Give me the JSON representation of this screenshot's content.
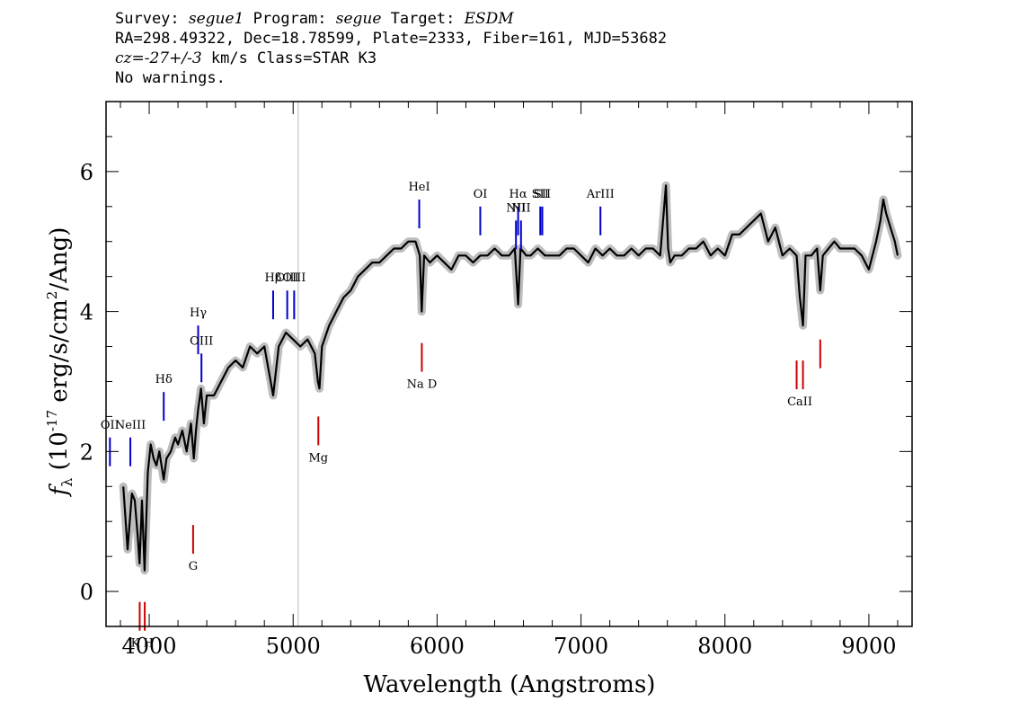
{
  "header": {
    "line1": {
      "p1": "Survey: ",
      "survey": "segue1",
      "p2": " Program: ",
      "program": "segue",
      "p3": " Target: ",
      "target": "ESDM"
    },
    "line2": "RA=298.49322, Dec=18.78599, Plate=2333, Fiber=161, MJD=53682",
    "line3": {
      "cz": "cz=-27+/-3",
      "rest": " km/s Class=STAR K3"
    },
    "line4": "No warnings."
  },
  "chart_data": {
    "type": "line",
    "title": "",
    "xlabel": "Wavelength (Angstroms)",
    "ylabel": "f_λ (10^-17 erg/s/cm^2/Ang)",
    "xlim": [
      3700,
      9300
    ],
    "ylim": [
      -0.5,
      7.0
    ],
    "x_ticks": [
      "4000",
      "5000",
      "6000",
      "7000",
      "8000",
      "9000"
    ],
    "y_ticks": [
      "0",
      "2",
      "4",
      "6"
    ],
    "vertical_marker_x": 5035,
    "series": [
      {
        "color": "#000000",
        "error_color": "#bdbdbd",
        "x": [
          3820,
          3850,
          3880,
          3900,
          3920,
          3933,
          3950,
          3968,
          3990,
          4010,
          4030,
          4050,
          4070,
          4101,
          4120,
          4150,
          4180,
          4200,
          4230,
          4260,
          4290,
          4310,
          4325,
          4340,
          4360,
          4380,
          4400,
          4450,
          4500,
          4550,
          4600,
          4650,
          4700,
          4750,
          4800,
          4861,
          4900,
          4950,
          5000,
          5050,
          5100,
          5150,
          5172,
          5183,
          5200,
          5250,
          5300,
          5350,
          5400,
          5450,
          5500,
          5550,
          5600,
          5650,
          5700,
          5750,
          5800,
          5850,
          5880,
          5893,
          5910,
          5950,
          6000,
          6050,
          6100,
          6150,
          6200,
          6250,
          6300,
          6350,
          6400,
          6450,
          6500,
          6540,
          6563,
          6580,
          6620,
          6650,
          6700,
          6750,
          6800,
          6850,
          6900,
          6950,
          7000,
          7050,
          7100,
          7150,
          7200,
          7250,
          7300,
          7350,
          7400,
          7450,
          7500,
          7550,
          7590,
          7605,
          7620,
          7650,
          7700,
          7750,
          7800,
          7850,
          7900,
          7950,
          8000,
          8050,
          8100,
          8150,
          8200,
          8250,
          8300,
          8350,
          8400,
          8450,
          8498,
          8520,
          8542,
          8560,
          8600,
          8640,
          8662,
          8680,
          8720,
          8760,
          8800,
          8850,
          8900,
          8950,
          9000,
          9050,
          9080,
          9100,
          9120,
          9150,
          9180,
          9200
        ],
        "values": [
          1.5,
          0.6,
          1.4,
          1.3,
          0.8,
          0.4,
          1.3,
          0.3,
          1.7,
          2.1,
          1.9,
          1.8,
          2.0,
          1.6,
          1.9,
          2.0,
          2.2,
          2.1,
          2.3,
          2.0,
          2.4,
          1.9,
          2.3,
          2.6,
          2.9,
          2.4,
          2.8,
          2.8,
          3.0,
          3.2,
          3.3,
          3.2,
          3.5,
          3.4,
          3.5,
          2.8,
          3.5,
          3.7,
          3.6,
          3.5,
          3.6,
          3.4,
          3.0,
          2.9,
          3.5,
          3.8,
          4.0,
          4.2,
          4.3,
          4.5,
          4.6,
          4.7,
          4.7,
          4.8,
          4.9,
          4.9,
          5.0,
          5.0,
          4.8,
          4.0,
          4.8,
          4.7,
          4.8,
          4.7,
          4.6,
          4.8,
          4.8,
          4.7,
          4.8,
          4.8,
          4.9,
          4.8,
          4.8,
          4.9,
          4.1,
          4.9,
          4.8,
          4.8,
          4.9,
          4.8,
          4.8,
          4.8,
          4.9,
          4.9,
          4.8,
          4.7,
          4.9,
          4.8,
          4.9,
          4.8,
          4.8,
          4.9,
          4.8,
          4.9,
          4.9,
          4.8,
          5.8,
          4.9,
          4.7,
          4.8,
          4.8,
          4.9,
          4.9,
          5.0,
          4.8,
          4.9,
          4.8,
          5.1,
          5.1,
          5.2,
          5.3,
          5.4,
          5.0,
          5.2,
          4.8,
          4.9,
          4.8,
          4.2,
          3.8,
          4.8,
          4.8,
          4.9,
          4.3,
          4.8,
          4.9,
          5.0,
          4.9,
          4.9,
          4.9,
          4.8,
          4.6,
          5.0,
          5.3,
          5.6,
          5.4,
          5.2,
          5.0,
          4.8
        ]
      }
    ],
    "emission_lines": [
      {
        "label": "OII",
        "x": 3727,
        "level": 2.2
      },
      {
        "label": "NeIII",
        "x": 3869,
        "level": 2.2
      },
      {
        "label": "Hδ",
        "x": 4101,
        "level": 2.85
      },
      {
        "label": "Hγ",
        "x": 4340,
        "level": 3.8
      },
      {
        "label": "OIII",
        "x": 4363,
        "level": 3.4
      },
      {
        "label": "Hβ",
        "x": 4861,
        "level": 4.3
      },
      {
        "label": "OIII",
        "x": 4959,
        "level": 4.3
      },
      {
        "label": "OIII",
        "x": 5007,
        "level": 4.3
      },
      {
        "label": "HeI",
        "x": 5876,
        "level": 5.6
      },
      {
        "label": "OI",
        "x": 6300,
        "level": 5.5
      },
      {
        "label": "NII",
        "x": 6548,
        "level": 5.3
      },
      {
        "label": "Hα",
        "x": 6563,
        "level": 5.5
      },
      {
        "label": "NII",
        "x": 6583,
        "level": 5.3
      },
      {
        "label": "SII",
        "x": 6717,
        "level": 5.5
      },
      {
        "label": "SII",
        "x": 6731,
        "level": 5.5
      },
      {
        "label": "ArIII",
        "x": 7135,
        "level": 5.5
      }
    ],
    "absorption_lines": [
      {
        "label": "K",
        "x": 3934,
        "level": -0.15
      },
      {
        "label": "H",
        "x": 3969,
        "level": -0.15
      },
      {
        "label": "G",
        "x": 4305,
        "level": 0.95
      },
      {
        "label": "Mg",
        "x": 5175,
        "level": 2.5
      },
      {
        "label": "Na D",
        "x": 5894,
        "level": 3.55
      },
      {
        "label": "CaII",
        "x": 8498,
        "level": 3.3
      },
      {
        "label": "CaII",
        "x": 8542,
        "level": 3.3
      },
      {
        "label": "CaII",
        "x": 8662,
        "level": 3.6
      }
    ],
    "line_label_texts": {
      "kh": "K H",
      "nad": "Na D",
      "caii": "CaII"
    },
    "colors": {
      "emission": "#0000cc",
      "absorption": "#cc0000",
      "marker": "#bbbbbb"
    }
  }
}
